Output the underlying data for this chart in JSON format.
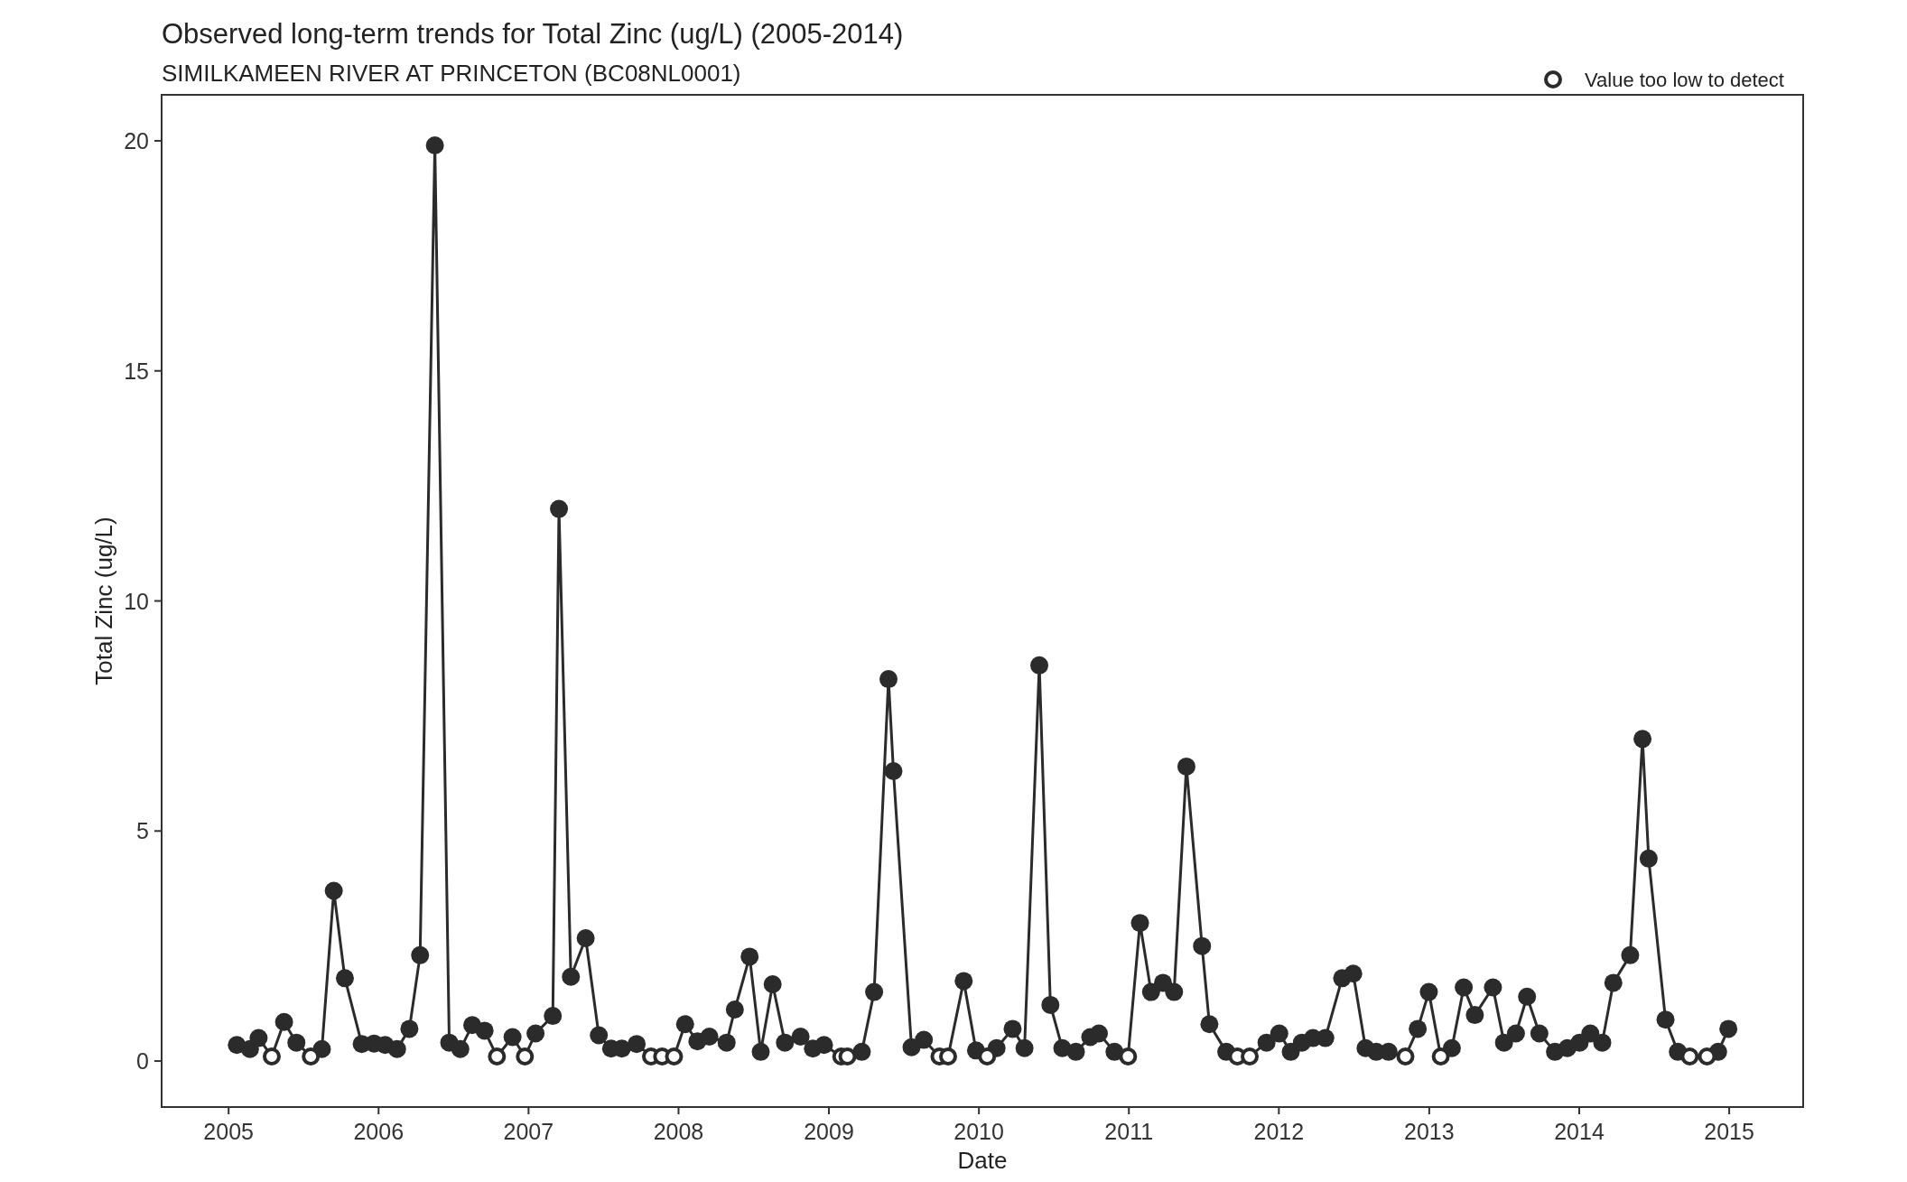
{
  "chart_data": {
    "type": "line",
    "title": "Observed long-term trends for Total Zinc (ug/L) (2005-2014)",
    "subtitle": "SIMILKAMEEN RIVER AT PRINCETON (BC08NL0001)",
    "xlabel": "Date",
    "ylabel": "Total Zinc (ug/L)",
    "xlim": [
      "2004-07-22",
      "2015-06-30"
    ],
    "xticks": [
      {
        "value": "2005-01-01",
        "label": "2005"
      },
      {
        "value": "2006-01-01",
        "label": "2006"
      },
      {
        "value": "2007-01-01",
        "label": "2007"
      },
      {
        "value": "2008-01-01",
        "label": "2008"
      },
      {
        "value": "2009-01-01",
        "label": "2009"
      },
      {
        "value": "2010-01-01",
        "label": "2010"
      },
      {
        "value": "2011-01-01",
        "label": "2011"
      },
      {
        "value": "2012-01-01",
        "label": "2012"
      },
      {
        "value": "2013-01-01",
        "label": "2013"
      },
      {
        "value": "2014-01-01",
        "label": "2014"
      },
      {
        "value": "2015-01-01",
        "label": "2015"
      }
    ],
    "ylim": [
      -1,
      21
    ],
    "yticks": [
      0,
      5,
      10,
      15,
      20
    ],
    "grid": false,
    "legend": "top right",
    "series": [
      {
        "marker": "none",
        "color": "#2b2b2b",
        "x": [
          "2005-01-21",
          "2005-02-22",
          "2005-03-15",
          "2005-04-16",
          "2005-05-16",
          "2005-06-15",
          "2005-07-20",
          "2005-08-16",
          "2005-09-14",
          "2005-10-11",
          "2005-11-21",
          "2005-12-21",
          "2006-01-17",
          "2006-02-15",
          "2006-03-17",
          "2006-04-12",
          "2006-05-18",
          "2006-06-22",
          "2006-07-19",
          "2006-08-17",
          "2006-09-16",
          "2006-10-16",
          "2006-11-23",
          "2006-12-23",
          "2007-01-18",
          "2007-03-01",
          "2007-03-16",
          "2007-04-14",
          "2007-05-20",
          "2007-06-21",
          "2007-07-21",
          "2007-08-16",
          "2007-09-21",
          "2007-10-26",
          "2007-11-22",
          "2007-12-21",
          "2008-01-17",
          "2008-02-16",
          "2008-03-16",
          "2008-04-27",
          "2008-05-17",
          "2008-06-22",
          "2008-07-19",
          "2008-08-17",
          "2008-09-16",
          "2008-10-24",
          "2008-11-23",
          "2008-12-20",
          "2009-01-31",
          "2009-02-15",
          "2009-03-22",
          "2009-04-21",
          "2009-05-26",
          "2009-06-07",
          "2009-07-21",
          "2009-08-20",
          "2009-09-27",
          "2009-10-18",
          "2009-11-25",
          "2009-12-25",
          "2010-01-21",
          "2010-02-13",
          "2010-03-24",
          "2010-04-22",
          "2010-05-28",
          "2010-06-24",
          "2010-07-23",
          "2010-08-25",
          "2010-09-29",
          "2010-10-20",
          "2010-11-27",
          "2010-12-30",
          "2011-01-28",
          "2011-02-24",
          "2011-03-25",
          "2011-04-21",
          "2011-05-21",
          "2011-06-28",
          "2011-07-16",
          "2011-08-26",
          "2011-09-22",
          "2011-10-22",
          "2011-12-02",
          "2012-01-02",
          "2012-01-30",
          "2012-02-26",
          "2012-03-24",
          "2012-04-23",
          "2012-06-03",
          "2012-06-30",
          "2012-07-30",
          "2012-08-25",
          "2012-09-24",
          "2012-11-04",
          "2012-12-04",
          "2012-12-31",
          "2013-01-29",
          "2013-02-25",
          "2013-03-26",
          "2013-04-22",
          "2013-06-05",
          "2013-07-02",
          "2013-07-31",
          "2013-08-27",
          "2013-09-26",
          "2013-11-03",
          "2013-12-03",
          "2014-01-02",
          "2014-01-28",
          "2014-02-26",
          "2014-03-25",
          "2014-05-05",
          "2014-06-04",
          "2014-06-19",
          "2014-07-30",
          "2014-08-29",
          "2014-09-27",
          "2014-11-08",
          "2014-12-05",
          "2014-12-30"
        ],
        "values": [
          0.35,
          0.26,
          0.5,
          0.1,
          0.85,
          0.4,
          0.1,
          0.26,
          3.7,
          1.8,
          0.37,
          0.38,
          0.35,
          0.26,
          0.7,
          2.3,
          19.9,
          0.4,
          0.26,
          0.78,
          0.66,
          0.1,
          0.52,
          0.1,
          0.6,
          0.98,
          12,
          1.83,
          2.67,
          0.56,
          0.27,
          0.27,
          0.37,
          0.1,
          0.1,
          0.1,
          0.8,
          0.43,
          0.53,
          0.4,
          1.12,
          2.27,
          0.2,
          1.67,
          0.4,
          0.53,
          0.27,
          0.35,
          0.1,
          0.1,
          0.2,
          1.5,
          8.3,
          6.3,
          0.3,
          0.46,
          0.1,
          0.1,
          1.74,
          0.23,
          0.1,
          0.28,
          0.7,
          0.28,
          8.6,
          1.22,
          0.28,
          0.2,
          0.52,
          0.6,
          0.2,
          0.1,
          3,
          1.5,
          1.7,
          1.5,
          6.4,
          2.5,
          0.8,
          0.2,
          0.1,
          0.1,
          0.4,
          0.6,
          0.2,
          0.4,
          0.5,
          0.5,
          1.8,
          1.9,
          0.28,
          0.2,
          0.2,
          0.1,
          0.7,
          1.5,
          0.1,
          0.28,
          1.6,
          1,
          1.6,
          0.4,
          0.6,
          1.4,
          0.6,
          0.2,
          0.28,
          0.4,
          0.6,
          0.4,
          1.7,
          2.3,
          7,
          4.4,
          0.9,
          0.2,
          0.1,
          0.1,
          0.2,
          0.7
        ]
      },
      {
        "type": "scatter",
        "marker": "circle",
        "color": "#2b2b2b",
        "x": [
          "2005-01-21",
          "2005-02-22",
          "2005-03-15",
          "2005-05-16",
          "2005-06-15",
          "2005-08-16",
          "2005-09-14",
          "2005-10-11",
          "2005-11-21",
          "2005-12-21",
          "2006-01-17",
          "2006-02-15",
          "2006-03-17",
          "2006-04-12",
          "2006-05-18",
          "2006-06-22",
          "2006-07-19",
          "2006-08-17",
          "2006-09-16",
          "2006-11-23",
          "2007-01-18",
          "2007-03-01",
          "2007-03-16",
          "2007-04-14",
          "2007-05-20",
          "2007-06-21",
          "2007-07-21",
          "2007-08-16",
          "2007-09-21",
          "2008-01-17",
          "2008-02-16",
          "2008-03-16",
          "2008-04-27",
          "2008-05-17",
          "2008-06-22",
          "2008-07-19",
          "2008-08-17",
          "2008-09-16",
          "2008-10-24",
          "2008-11-23",
          "2008-12-20",
          "2009-03-22",
          "2009-04-21",
          "2009-05-26",
          "2009-06-07",
          "2009-07-21",
          "2009-08-20",
          "2009-11-25",
          "2009-12-25",
          "2010-02-13",
          "2010-03-24",
          "2010-04-22",
          "2010-05-28",
          "2010-06-24",
          "2010-07-23",
          "2010-08-25",
          "2010-09-29",
          "2010-10-20",
          "2010-11-27",
          "2011-01-28",
          "2011-02-24",
          "2011-03-25",
          "2011-04-21",
          "2011-05-21",
          "2011-06-28",
          "2011-07-16",
          "2011-08-26",
          "2011-12-02",
          "2012-01-02",
          "2012-01-30",
          "2012-02-26",
          "2012-03-24",
          "2012-04-23",
          "2012-06-03",
          "2012-06-30",
          "2012-07-30",
          "2012-08-25",
          "2012-09-24",
          "2012-12-04",
          "2012-12-31",
          "2013-02-25",
          "2013-03-26",
          "2013-04-22",
          "2013-06-05",
          "2013-07-02",
          "2013-07-31",
          "2013-08-27",
          "2013-09-26",
          "2013-11-03",
          "2013-12-03",
          "2014-01-02",
          "2014-01-28",
          "2014-02-26",
          "2014-03-25",
          "2014-05-05",
          "2014-06-04",
          "2014-06-19",
          "2014-07-30",
          "2014-08-29",
          "2014-12-05",
          "2014-12-30"
        ],
        "values": [
          0.35,
          0.26,
          0.5,
          0.85,
          0.4,
          0.26,
          3.7,
          1.8,
          0.37,
          0.38,
          0.35,
          0.26,
          0.7,
          2.3,
          19.9,
          0.4,
          0.26,
          0.78,
          0.66,
          0.52,
          0.6,
          0.98,
          12,
          1.83,
          2.67,
          0.56,
          0.27,
          0.27,
          0.37,
          0.8,
          0.43,
          0.53,
          0.4,
          1.12,
          2.27,
          0.2,
          1.67,
          0.4,
          0.53,
          0.27,
          0.35,
          0.2,
          1.5,
          8.3,
          6.3,
          0.3,
          0.46,
          1.74,
          0.23,
          0.28,
          0.7,
          0.28,
          8.6,
          1.22,
          0.28,
          0.2,
          0.52,
          0.6,
          0.2,
          3,
          1.5,
          1.7,
          1.5,
          6.4,
          2.5,
          0.8,
          0.2,
          0.4,
          0.6,
          0.2,
          0.4,
          0.5,
          0.5,
          1.8,
          1.9,
          0.28,
          0.2,
          0.2,
          0.7,
          1.5,
          0.28,
          1.6,
          1,
          1.6,
          0.4,
          0.6,
          1.4,
          0.6,
          0.2,
          0.28,
          0.4,
          0.6,
          0.4,
          1.7,
          2.3,
          7,
          4.4,
          0.9,
          0.2,
          0.2,
          0.7
        ]
      },
      {
        "type": "scatter",
        "marker": "circle",
        "name": "Value too low to detect",
        "color": "#2b2b2b",
        "x": [
          "2005-04-16",
          "2005-07-20",
          "2006-10-16",
          "2006-12-23",
          "2007-10-26",
          "2007-11-22",
          "2007-12-21",
          "2009-01-31",
          "2009-02-15",
          "2009-09-27",
          "2009-10-18",
          "2010-01-21",
          "2010-12-30",
          "2011-09-22",
          "2011-10-22",
          "2012-11-04",
          "2013-01-29",
          "2014-09-27",
          "2014-11-08"
        ],
        "values": [
          0.1,
          0.1,
          0.1,
          0.1,
          0.1,
          0.1,
          0.1,
          0.1,
          0.1,
          0.1,
          0.1,
          0.1,
          0.1,
          0.1,
          0.1,
          0.1,
          0.1,
          0.1,
          0.1
        ]
      }
    ]
  }
}
